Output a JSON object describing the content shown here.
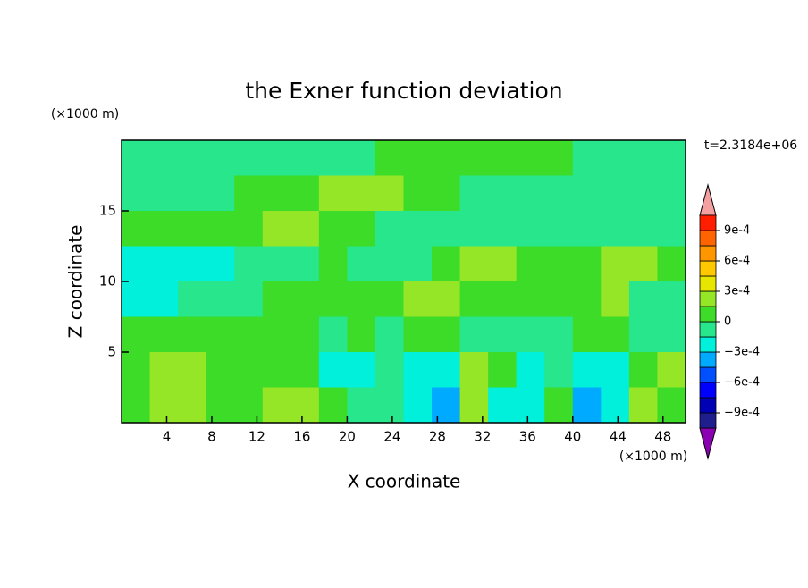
{
  "chart_data": {
    "type": "contour",
    "title": "the Exner function deviation",
    "x_label": "X coordinate",
    "y_label": "Z coordinate",
    "x_unit": "(×1000 m)",
    "y_unit": "(×1000 m)",
    "annotation": "t=2.3184e+06",
    "xlim": [
      0,
      50
    ],
    "ylim": [
      0,
      20
    ],
    "xticks": [
      4,
      8,
      12,
      16,
      20,
      24,
      28,
      32,
      36,
      40,
      44,
      48
    ],
    "yticks": [
      5,
      10,
      15
    ],
    "x": [
      1.25,
      3.75,
      6.25,
      8.75,
      11.25,
      13.75,
      16.25,
      18.75,
      21.25,
      23.75,
      26.25,
      28.75,
      31.25,
      33.75,
      36.25,
      38.75,
      41.25,
      43.75,
      46.25,
      48.75
    ],
    "y": [
      18.75,
      16.25,
      13.75,
      11.25,
      8.75,
      6.25,
      3.75,
      1.25
    ],
    "z": [
      [
        -7e-05,
        -7e-05,
        -7e-05,
        -7e-05,
        -7e-05,
        -7e-05,
        -7e-05,
        -7e-05,
        -7e-05,
        7e-05,
        7e-05,
        7e-05,
        7e-05,
        7e-05,
        7e-05,
        7e-05,
        -7e-05,
        -7e-05,
        -7e-05,
        -7e-05
      ],
      [
        -7e-05,
        -7e-05,
        -7e-05,
        -7e-05,
        7e-05,
        7e-05,
        7e-05,
        0.0002,
        0.0002,
        0.0002,
        7e-05,
        7e-05,
        -7e-05,
        -7e-05,
        -7e-05,
        -7e-05,
        -7e-05,
        -7e-05,
        -7e-05,
        -7e-05
      ],
      [
        7e-05,
        7e-05,
        7e-05,
        7e-05,
        7e-05,
        0.0002,
        0.0002,
        7e-05,
        7e-05,
        -7e-05,
        -7e-05,
        -7e-05,
        -7e-05,
        -7e-05,
        -7e-05,
        -7e-05,
        -7e-05,
        -7e-05,
        -7e-05,
        -7e-05
      ],
      [
        -0.0002,
        -0.0002,
        -0.0002,
        -0.0002,
        -7e-05,
        -7e-05,
        -7e-05,
        7e-05,
        -7e-05,
        -7e-05,
        -7e-05,
        7e-05,
        0.0002,
        0.0002,
        7e-05,
        7e-05,
        7e-05,
        0.0002,
        0.0002,
        7e-05
      ],
      [
        -0.0002,
        -0.0002,
        -7e-05,
        -7e-05,
        -7e-05,
        7e-05,
        7e-05,
        7e-05,
        7e-05,
        7e-05,
        0.0002,
        0.0002,
        7e-05,
        7e-05,
        7e-05,
        7e-05,
        7e-05,
        0.0002,
        -7e-05,
        -7e-05
      ],
      [
        7e-05,
        7e-05,
        7e-05,
        7e-05,
        7e-05,
        7e-05,
        7e-05,
        -7e-05,
        7e-05,
        -7e-05,
        7e-05,
        7e-05,
        -7e-05,
        -7e-05,
        -7e-05,
        -7e-05,
        7e-05,
        7e-05,
        -7e-05,
        -7e-05
      ],
      [
        7e-05,
        0.0002,
        0.0002,
        7e-05,
        7e-05,
        7e-05,
        7e-05,
        -0.0002,
        -0.0002,
        -7e-05,
        -0.0002,
        -0.0002,
        0.0002,
        7e-05,
        -0.0002,
        -7e-05,
        -0.0002,
        -0.0002,
        7e-05,
        0.0002
      ],
      [
        7e-05,
        0.0002,
        0.0002,
        7e-05,
        7e-05,
        0.0002,
        0.0002,
        7e-05,
        -7e-05,
        -7e-05,
        -0.0002,
        -0.0004,
        0.0002,
        -0.0002,
        -0.0002,
        7e-05,
        -0.0004,
        -0.0002,
        0.0002,
        7e-05
      ]
    ],
    "levels": [
      -0.00105,
      -0.0009,
      -0.00075,
      -0.0006,
      -0.00045,
      -0.0003,
      -0.00015,
      0,
      0.00015,
      0.0003,
      0.00045,
      0.0006,
      0.00075,
      0.0009,
      0.00105
    ],
    "colors": [
      "#8c00b4",
      "#1e1e8c",
      "#0000b4",
      "#0000ff",
      "#0050ff",
      "#00aaff",
      "#00f0dc",
      "#28e68c",
      "#3cdc28",
      "#96e628",
      "#e6e600",
      "#ffc800",
      "#ff9600",
      "#ff6400",
      "#ff1e00",
      "#f5a0a0"
    ],
    "colorbar_ticks": [
      {
        "value": 0.0009,
        "label": "9e-4"
      },
      {
        "value": 0.0006,
        "label": "6e-4"
      },
      {
        "value": 0.0003,
        "label": "3e-4"
      },
      0,
      {
        "value": -0.0003,
        "label": "−3e-4"
      },
      {
        "value": -0.0006,
        "label": "−6e-4"
      },
      {
        "value": -0.0009,
        "label": "−9e-4"
      }
    ]
  }
}
